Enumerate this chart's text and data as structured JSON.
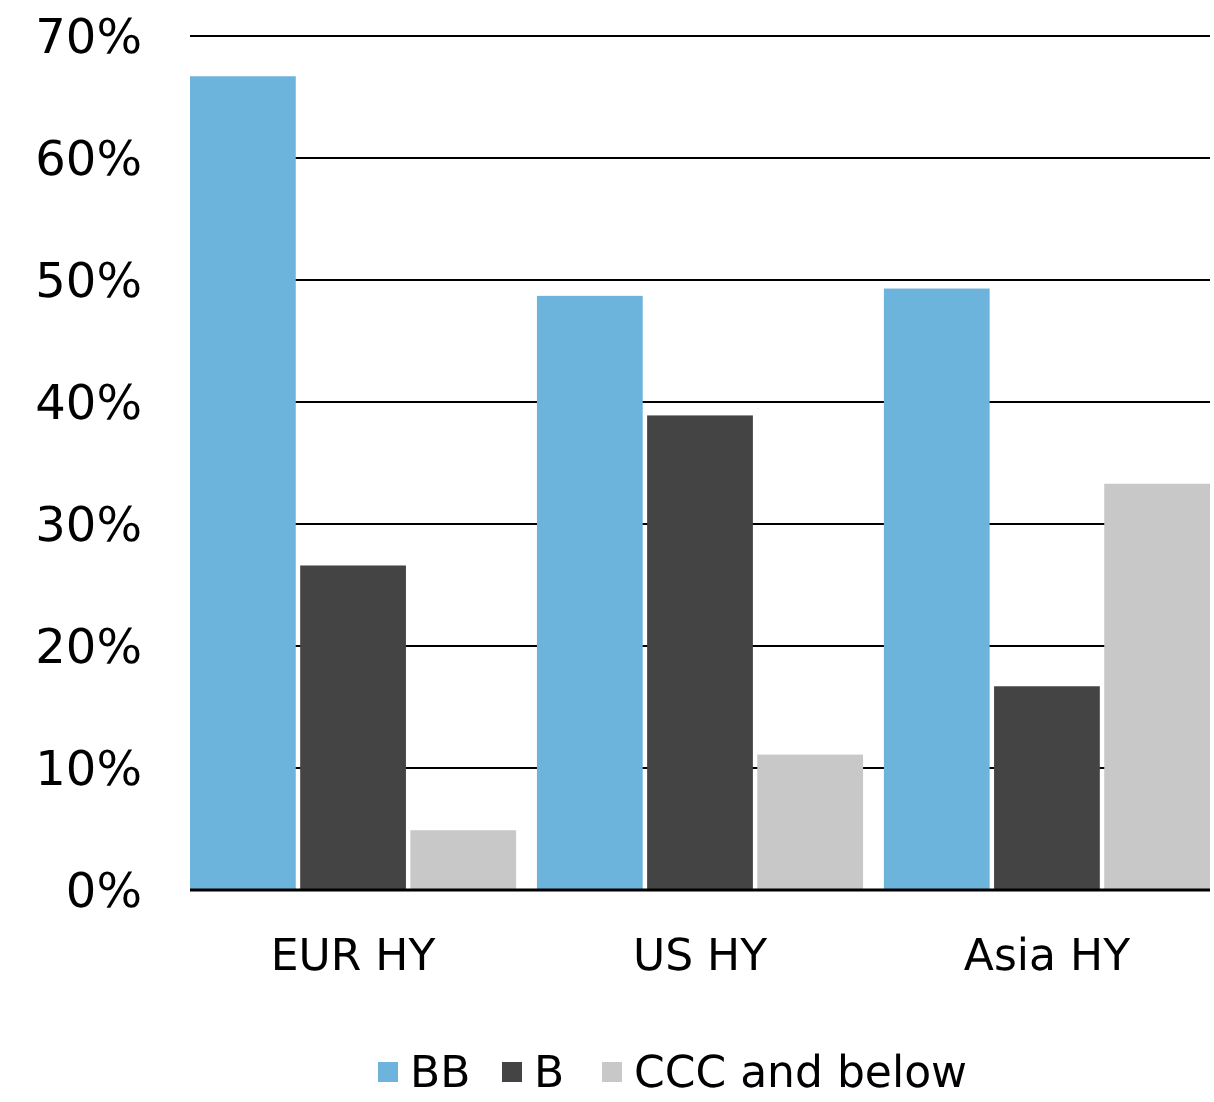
{
  "chart_data": {
    "type": "bar",
    "categories": [
      "EUR HY",
      "US HY",
      "Asia HY"
    ],
    "series": [
      {
        "name": "BB",
        "color": "#6cb4dc",
        "values": [
          66.7,
          48.7,
          49.3
        ]
      },
      {
        "name": "B",
        "color": "#444444",
        "values": [
          26.6,
          38.9,
          16.7
        ]
      },
      {
        "name": "CCC and below",
        "color": "#c8c8c8",
        "values": [
          4.9,
          11.1,
          33.3
        ]
      }
    ],
    "ylim": [
      0,
      70
    ],
    "yticks": [
      {
        "value": 0,
        "label": "0%"
      },
      {
        "value": 10,
        "label": "10%"
      },
      {
        "value": 20,
        "label": "20%"
      },
      {
        "value": 30,
        "label": "30%"
      },
      {
        "value": 40,
        "label": "40%"
      },
      {
        "value": 50,
        "label": "50%"
      },
      {
        "value": 60,
        "label": "60%"
      },
      {
        "value": 70,
        "label": "70%"
      }
    ],
    "grid": "y",
    "legend": "bottom"
  }
}
